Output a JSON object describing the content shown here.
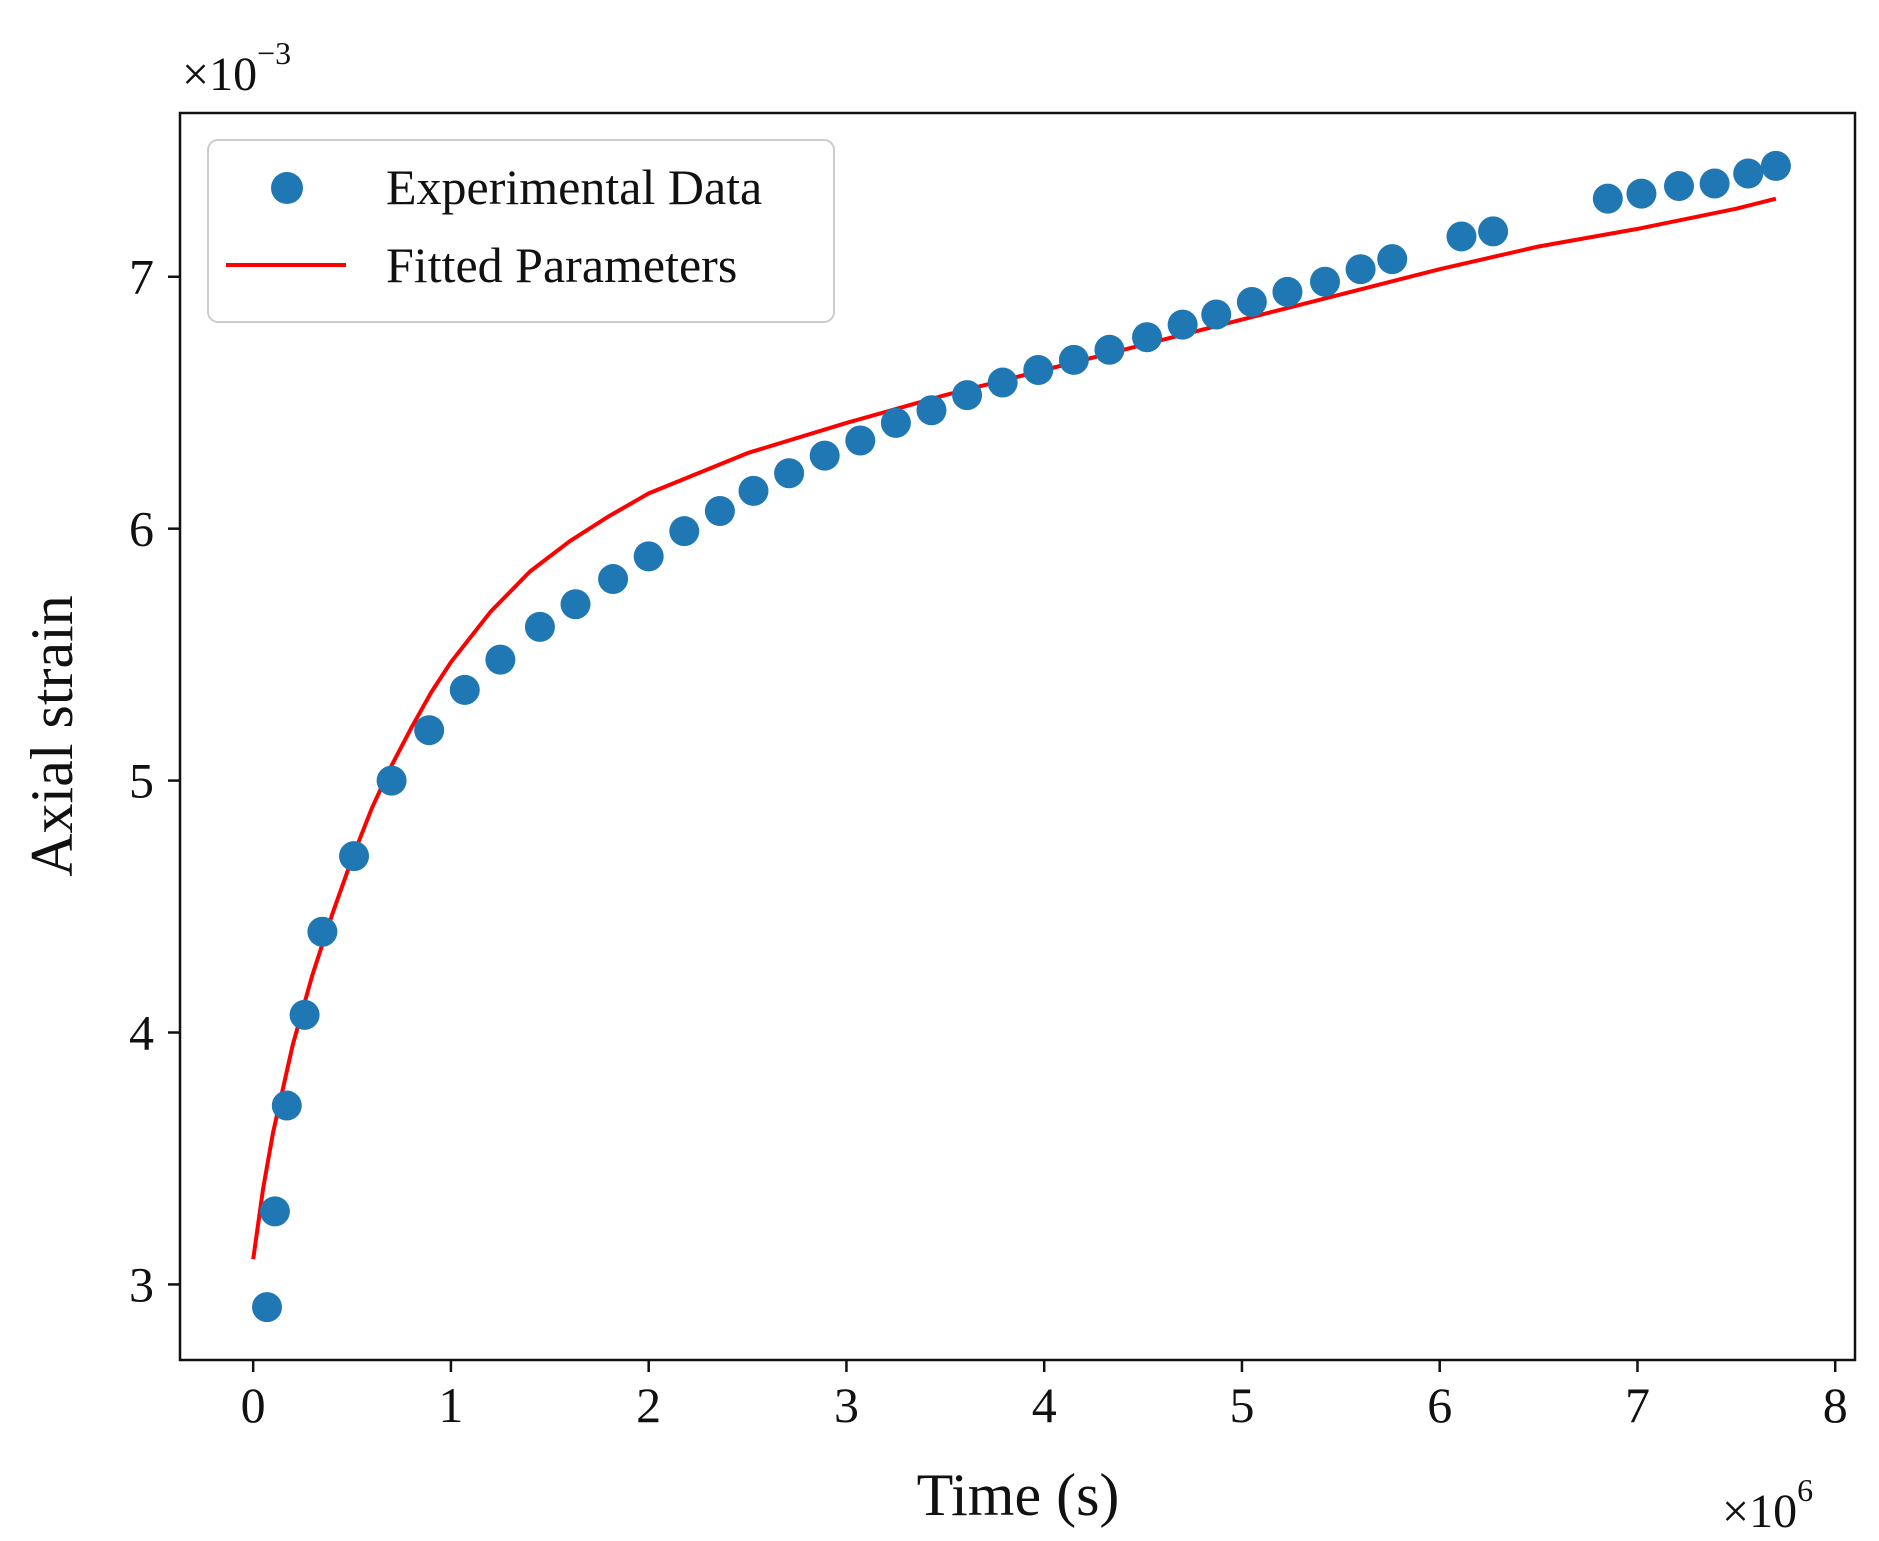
{
  "chart_data": {
    "type": "scatter",
    "title": "",
    "xlabel": "Time (s)",
    "ylabel": "Axial strain",
    "x_scale_label": {
      "base": "×10",
      "exponent": "6"
    },
    "y_scale_label": {
      "base": "×10",
      "exponent": "−3"
    },
    "xlim": [
      -0.37,
      8.1
    ],
    "ylim": [
      2.7,
      7.65
    ],
    "x_ticks": [
      0,
      1,
      2,
      3,
      4,
      5,
      6,
      7,
      8
    ],
    "x_tick_labels": [
      "0",
      "1",
      "2",
      "3",
      "4",
      "5",
      "6",
      "7",
      "8"
    ],
    "y_ticks": [
      3,
      4,
      5,
      6,
      7
    ],
    "y_tick_labels": [
      "3",
      "4",
      "5",
      "6",
      "7"
    ],
    "grid": false,
    "legend_position": "top-left",
    "series": [
      {
        "name": "Experimental Data",
        "kind": "scatter",
        "color": "#1f77b4",
        "x": [
          0.07,
          0.11,
          0.17,
          0.26,
          0.35,
          0.51,
          0.7,
          0.89,
          1.07,
          1.25,
          1.45,
          1.63,
          1.82,
          2.0,
          2.18,
          2.36,
          2.53,
          2.71,
          2.89,
          3.07,
          3.25,
          3.43,
          3.61,
          3.79,
          3.97,
          4.15,
          4.33,
          4.52,
          4.7,
          4.87,
          5.05,
          5.23,
          5.42,
          5.6,
          5.76,
          6.11,
          6.27,
          6.85,
          7.02,
          7.21,
          7.39,
          7.56,
          7.7
        ],
        "y": [
          2.91,
          3.29,
          3.71,
          4.07,
          4.4,
          4.7,
          5.0,
          5.2,
          5.36,
          5.48,
          5.61,
          5.7,
          5.8,
          5.89,
          5.99,
          6.07,
          6.15,
          6.22,
          6.29,
          6.35,
          6.42,
          6.47,
          6.53,
          6.58,
          6.63,
          6.67,
          6.71,
          6.76,
          6.81,
          6.85,
          6.9,
          6.94,
          6.98,
          7.03,
          7.07,
          7.16,
          7.18,
          7.31,
          7.33,
          7.36,
          7.37,
          7.41,
          7.44
        ]
      },
      {
        "name": "Fitted Parameters",
        "kind": "line",
        "color": "#ff0000",
        "x": [
          0.0,
          0.05,
          0.1,
          0.2,
          0.3,
          0.4,
          0.5,
          0.6,
          0.7,
          0.8,
          0.9,
          1.0,
          1.2,
          1.4,
          1.6,
          1.8,
          2.0,
          2.5,
          3.0,
          3.5,
          4.0,
          4.5,
          5.0,
          5.5,
          6.0,
          6.5,
          7.0,
          7.5,
          7.7
        ],
        "y": [
          3.1,
          3.38,
          3.6,
          3.95,
          4.23,
          4.47,
          4.69,
          4.89,
          5.06,
          5.21,
          5.35,
          5.47,
          5.67,
          5.83,
          5.95,
          6.05,
          6.14,
          6.3,
          6.42,
          6.53,
          6.63,
          6.73,
          6.83,
          6.93,
          7.03,
          7.12,
          7.19,
          7.27,
          7.31
        ]
      }
    ]
  }
}
